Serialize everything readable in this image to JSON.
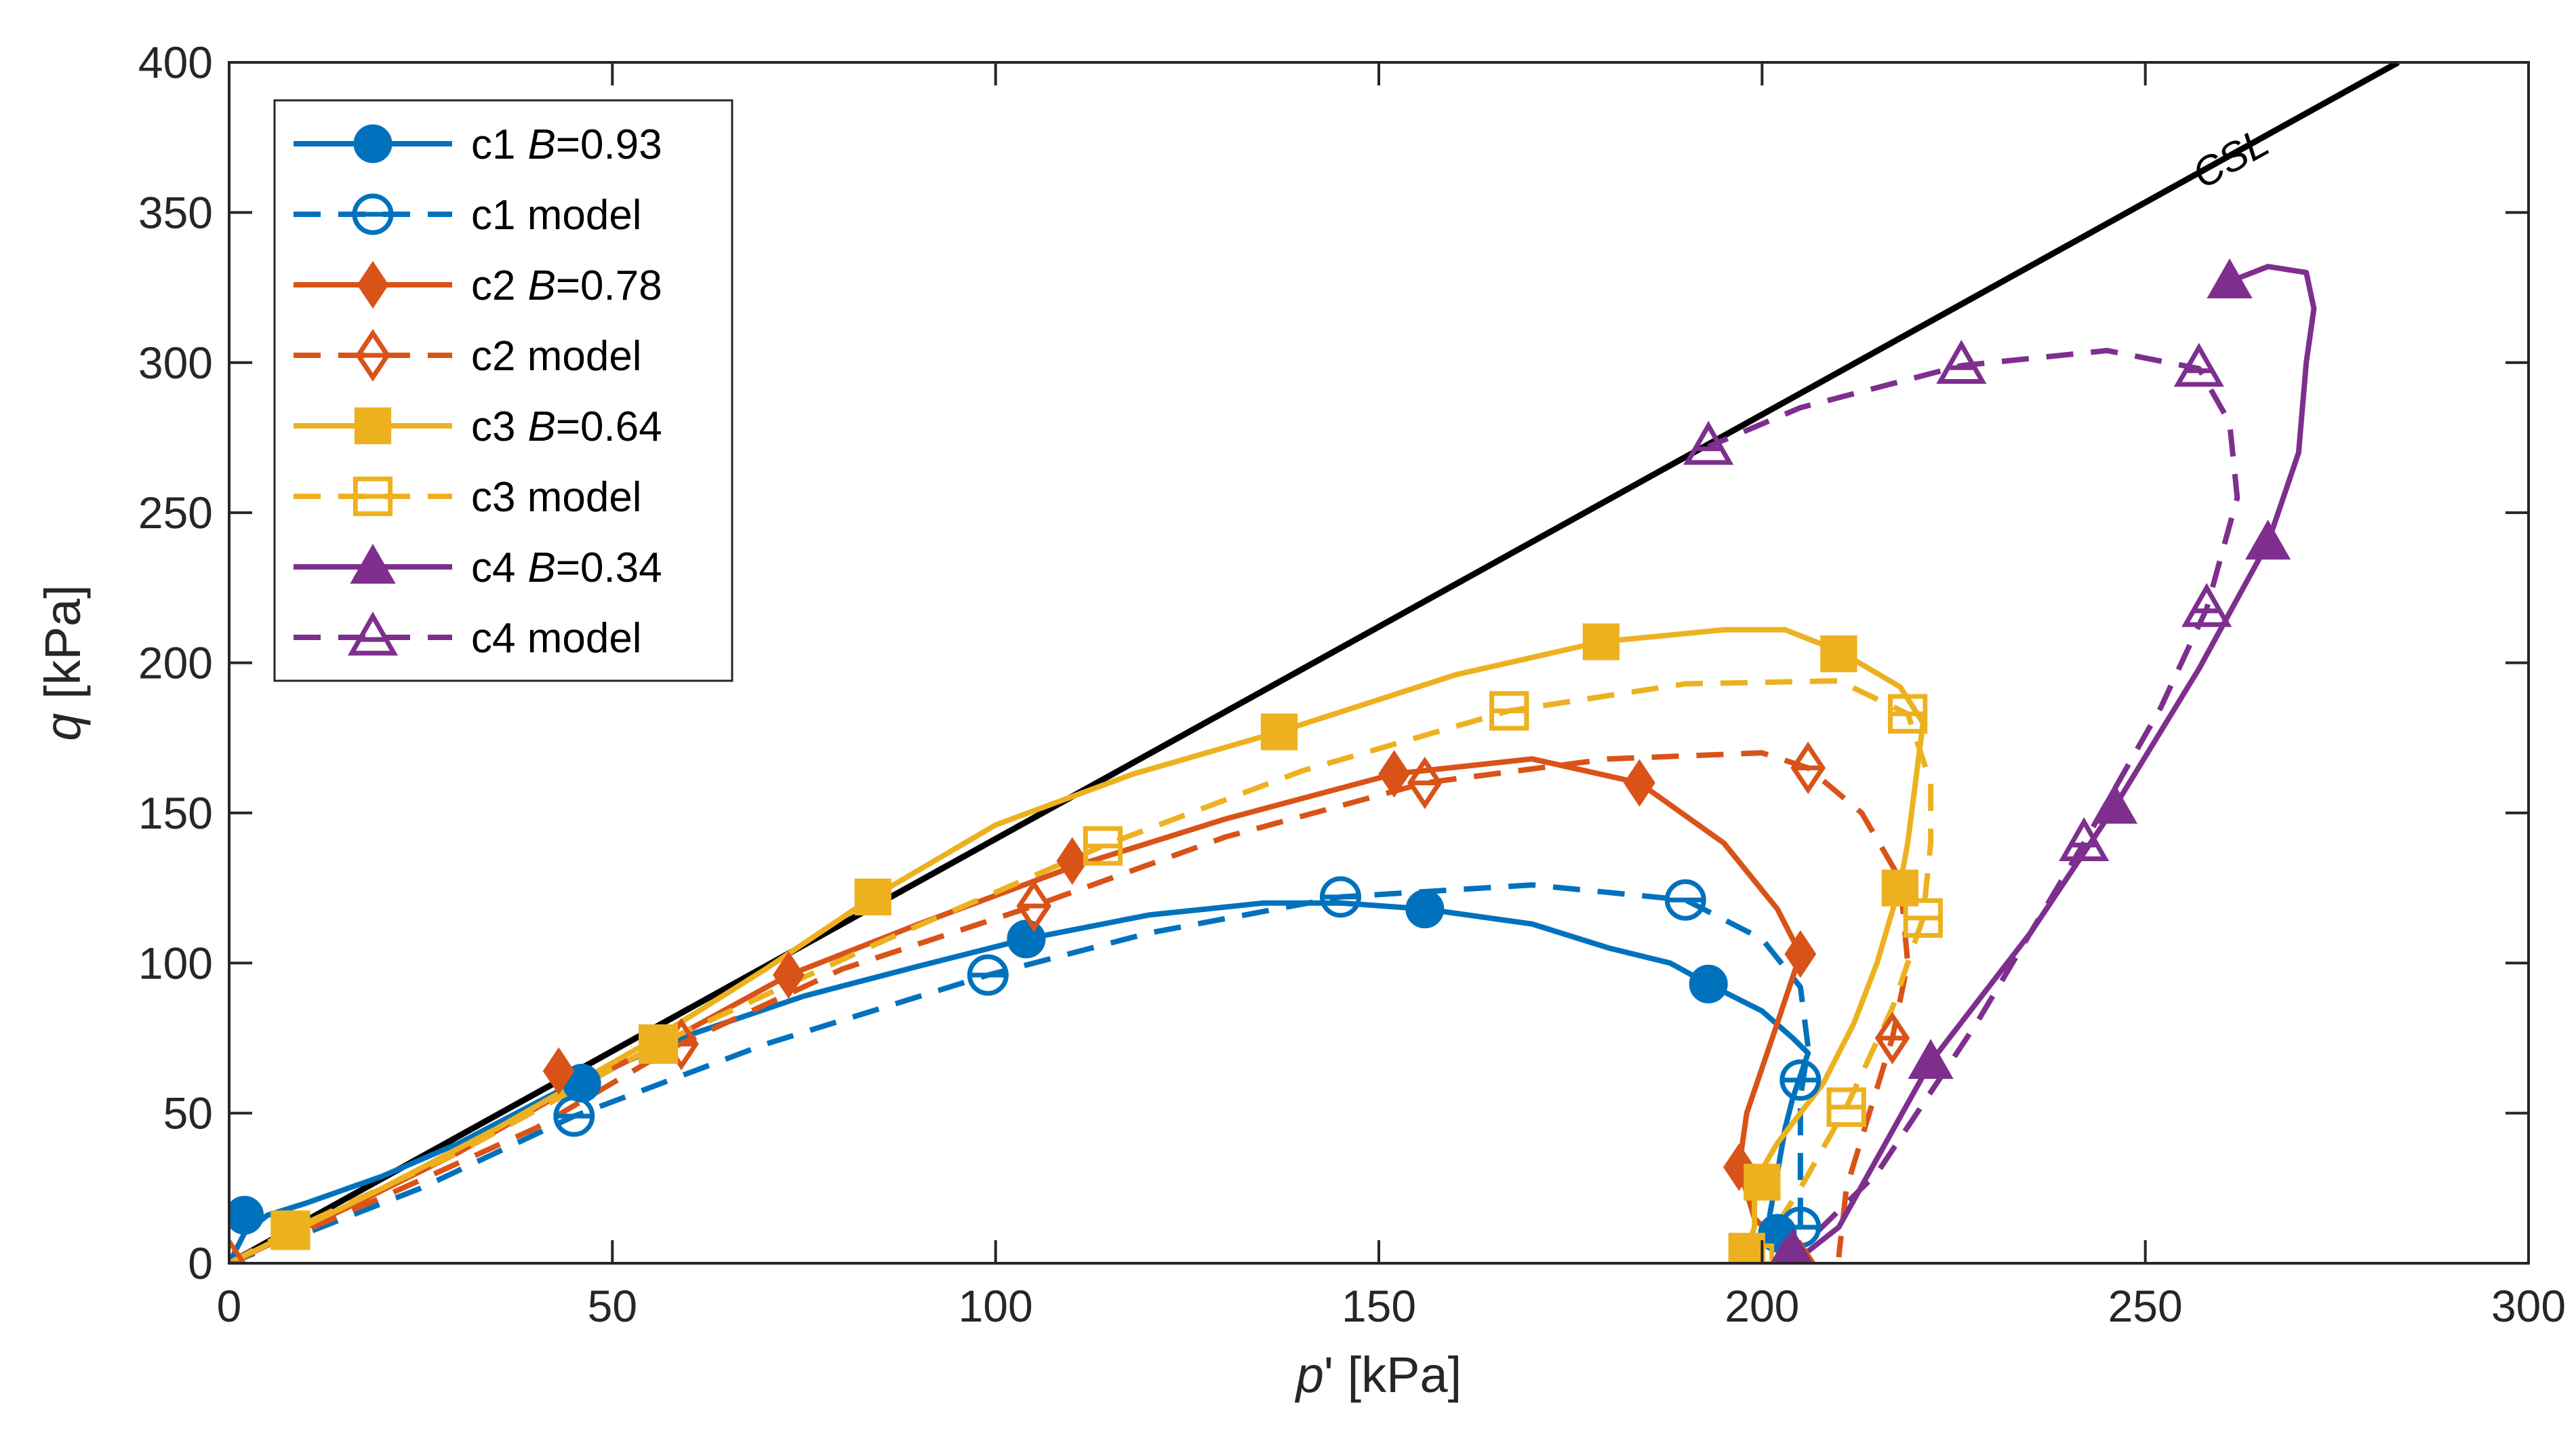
{
  "chart_data": {
    "type": "line",
    "title": "",
    "xlabel": {
      "italic": "p",
      "rest": "' [kPa]"
    },
    "ylabel": {
      "italic": "q",
      "rest": " [kPa]"
    },
    "xlim": [
      0,
      300
    ],
    "ylim": [
      0,
      400
    ],
    "xticks": [
      0,
      50,
      100,
      150,
      200,
      250,
      300
    ],
    "yticks": [
      0,
      50,
      100,
      150,
      200,
      250,
      300,
      350,
      400
    ],
    "grid": false,
    "legend_position": "top-left",
    "csl": {
      "label": "CSL",
      "color": "#000000",
      "points": [
        [
          0,
          0
        ],
        [
          283,
          400
        ]
      ]
    },
    "series": [
      {
        "id": "c1",
        "name": "c1",
        "bvar": "B",
        "bval": "=0.93",
        "color": "#0072BD",
        "dash": false,
        "marker": "circle",
        "filled": true,
        "points": [
          [
            0,
            0
          ],
          [
            2,
            10
          ],
          [
            5,
            16
          ],
          [
            10,
            20
          ],
          [
            20,
            29
          ],
          [
            30,
            40
          ],
          [
            45,
            60
          ],
          [
            60,
            76
          ],
          [
            75,
            89
          ],
          [
            90,
            99
          ],
          [
            104,
            108
          ],
          [
            120,
            116
          ],
          [
            135,
            120
          ],
          [
            145,
            120
          ],
          [
            156,
            118
          ],
          [
            170,
            113
          ],
          [
            180,
            105
          ],
          [
            188,
            100
          ],
          [
            193,
            93
          ],
          [
            200,
            84
          ],
          [
            204,
            75
          ],
          [
            206,
            70
          ],
          [
            204,
            55
          ],
          [
            203,
            45
          ],
          [
            202,
            30
          ],
          [
            201,
            16
          ],
          [
            201,
            10
          ],
          [
            202,
            4
          ]
        ],
        "marker_points": [
          [
            2,
            16
          ],
          [
            46,
            60
          ],
          [
            104,
            108
          ],
          [
            156,
            118
          ],
          [
            193,
            93
          ],
          [
            202,
            10
          ]
        ]
      },
      {
        "id": "c1m",
        "name": "c1 model",
        "bvar": "",
        "bval": "",
        "color": "#0072BD",
        "dash": true,
        "marker": "circle",
        "filled": false,
        "points": [
          [
            0,
            0
          ],
          [
            10,
            10
          ],
          [
            25,
            25
          ],
          [
            45,
            49
          ],
          [
            70,
            73
          ],
          [
            99,
            96
          ],
          [
            120,
            110
          ],
          [
            145,
            122
          ],
          [
            170,
            126
          ],
          [
            190,
            121
          ],
          [
            200,
            108
          ],
          [
            205,
            92
          ],
          [
            206,
            72
          ],
          [
            205,
            55
          ],
          [
            205,
            30
          ],
          [
            205,
            12
          ],
          [
            205,
            2
          ]
        ],
        "marker_points": [
          [
            45,
            49
          ],
          [
            99,
            96
          ],
          [
            145,
            122
          ],
          [
            190,
            121
          ],
          [
            205,
            61
          ],
          [
            205,
            12
          ]
        ]
      },
      {
        "id": "c2",
        "name": "c2",
        "bvar": "B",
        "bval": "=0.78",
        "color": "#D95319",
        "dash": false,
        "marker": "diamond",
        "filled": true,
        "points": [
          [
            0,
            0
          ],
          [
            15,
            18
          ],
          [
            30,
            37
          ],
          [
            43,
            56
          ],
          [
            58,
            75
          ],
          [
            73,
            96
          ],
          [
            90,
            113
          ],
          [
            110,
            132
          ],
          [
            130,
            148
          ],
          [
            152,
            163
          ],
          [
            170,
            168
          ],
          [
            184,
            160
          ],
          [
            195,
            140
          ],
          [
            202,
            118
          ],
          [
            205,
            103
          ],
          [
            202,
            80
          ],
          [
            198,
            50
          ],
          [
            197,
            32
          ],
          [
            199,
            15
          ],
          [
            203,
            5
          ],
          [
            205,
            0
          ]
        ],
        "marker_points": [
          [
            43,
            64
          ],
          [
            73,
            96
          ],
          [
            110,
            134
          ],
          [
            152,
            163
          ],
          [
            184,
            160
          ],
          [
            205,
            103
          ],
          [
            197,
            32
          ],
          [
            205,
            0
          ]
        ]
      },
      {
        "id": "c2m",
        "name": "c2 model",
        "bvar": "",
        "bval": "",
        "color": "#D95319",
        "dash": true,
        "marker": "diamond",
        "filled": false,
        "points": [
          [
            0,
            0
          ],
          [
            20,
            22
          ],
          [
            40,
            45
          ],
          [
            58,
            72
          ],
          [
            80,
            98
          ],
          [
            105,
            119
          ],
          [
            130,
            142
          ],
          [
            156,
            160
          ],
          [
            180,
            168
          ],
          [
            200,
            170
          ],
          [
            206,
            165
          ],
          [
            213,
            150
          ],
          [
            218,
            128
          ],
          [
            219,
            100
          ],
          [
            217,
            75
          ],
          [
            214,
            50
          ],
          [
            211,
            25
          ],
          [
            210,
            2
          ]
        ],
        "marker_points": [
          [
            0,
            0
          ],
          [
            59,
            73
          ],
          [
            105,
            119
          ],
          [
            156,
            160
          ],
          [
            206,
            165
          ],
          [
            217,
            75
          ]
        ]
      },
      {
        "id": "c3",
        "name": "c3",
        "bvar": "B",
        "bval": "=0.64",
        "color": "#EDB120",
        "dash": false,
        "marker": "square",
        "filled": true,
        "points": [
          [
            0,
            0
          ],
          [
            20,
            25
          ],
          [
            35,
            45
          ],
          [
            55,
            74
          ],
          [
            70,
            98
          ],
          [
            84,
            122
          ],
          [
            100,
            146
          ],
          [
            118,
            163
          ],
          [
            137,
            177
          ],
          [
            160,
            196
          ],
          [
            179,
            207
          ],
          [
            195,
            211
          ],
          [
            203,
            211
          ],
          [
            210,
            204
          ],
          [
            218,
            192
          ],
          [
            221,
            180
          ],
          [
            220,
            160
          ],
          [
            219,
            140
          ],
          [
            218,
            126
          ],
          [
            215,
            100
          ],
          [
            212,
            80
          ],
          [
            208,
            60
          ],
          [
            202,
            40
          ],
          [
            199,
            27
          ],
          [
            199,
            12
          ],
          [
            198,
            4
          ],
          [
            199,
            0
          ]
        ],
        "marker_points": [
          [
            8,
            11
          ],
          [
            56,
            73
          ],
          [
            84,
            122
          ],
          [
            137,
            177
          ],
          [
            179,
            207
          ],
          [
            210,
            203
          ],
          [
            218,
            125
          ],
          [
            200,
            27
          ],
          [
            198,
            4
          ]
        ]
      },
      {
        "id": "c3m",
        "name": "c3 model",
        "bvar": "",
        "bval": "",
        "color": "#EDB120",
        "dash": true,
        "marker": "square",
        "filled": false,
        "points": [
          [
            0,
            0
          ],
          [
            8,
            11
          ],
          [
            30,
            37
          ],
          [
            56,
            73
          ],
          [
            85,
            107
          ],
          [
            114,
            139
          ],
          [
            140,
            164
          ],
          [
            167,
            184
          ],
          [
            190,
            193
          ],
          [
            210,
            194
          ],
          [
            219,
            183
          ],
          [
            222,
            160
          ],
          [
            222,
            140
          ],
          [
            221,
            115
          ],
          [
            217,
            85
          ],
          [
            211,
            52
          ],
          [
            205,
            25
          ],
          [
            200,
            5
          ],
          [
            199,
            0
          ]
        ],
        "marker_points": [
          [
            8,
            11
          ],
          [
            56,
            73
          ],
          [
            114,
            139
          ],
          [
            167,
            184
          ],
          [
            219,
            183
          ],
          [
            221,
            115
          ],
          [
            211,
            52
          ],
          [
            199,
            0
          ]
        ]
      },
      {
        "id": "c4",
        "name": "c4",
        "bvar": "B",
        "bval": "=0.34",
        "color": "#7E2F8E",
        "dash": false,
        "marker": "triangle",
        "filled": true,
        "points": [
          [
            204,
            0
          ],
          [
            210,
            12
          ],
          [
            222,
            67
          ],
          [
            235,
            110
          ],
          [
            246,
            152
          ],
          [
            257,
            198
          ],
          [
            266,
            240
          ],
          [
            270,
            270
          ],
          [
            271,
            300
          ],
          [
            272,
            318
          ],
          [
            271,
            330
          ],
          [
            266,
            332
          ],
          [
            261,
            327
          ]
        ],
        "marker_points": [
          [
            204,
            4
          ],
          [
            222,
            67
          ],
          [
            246,
            152
          ],
          [
            266,
            240
          ],
          [
            261,
            327
          ]
        ]
      },
      {
        "id": "c4m",
        "name": "c4 model",
        "bvar": "",
        "bval": "",
        "color": "#7E2F8E",
        "dash": true,
        "marker": "triangle",
        "filled": false,
        "points": [
          [
            203,
            0
          ],
          [
            215,
            30
          ],
          [
            228,
            80
          ],
          [
            242,
            140
          ],
          [
            252,
            185
          ],
          [
            258,
            218
          ],
          [
            262,
            255
          ],
          [
            261,
            280
          ],
          [
            257,
            298
          ],
          [
            245,
            304
          ],
          [
            226,
            299
          ],
          [
            205,
            285
          ],
          [
            193,
            272
          ]
        ],
        "marker_points": [
          [
            203,
            0
          ],
          [
            242,
            140
          ],
          [
            258,
            218
          ],
          [
            257,
            298
          ],
          [
            226,
            299
          ],
          [
            193,
            272
          ]
        ]
      }
    ]
  }
}
